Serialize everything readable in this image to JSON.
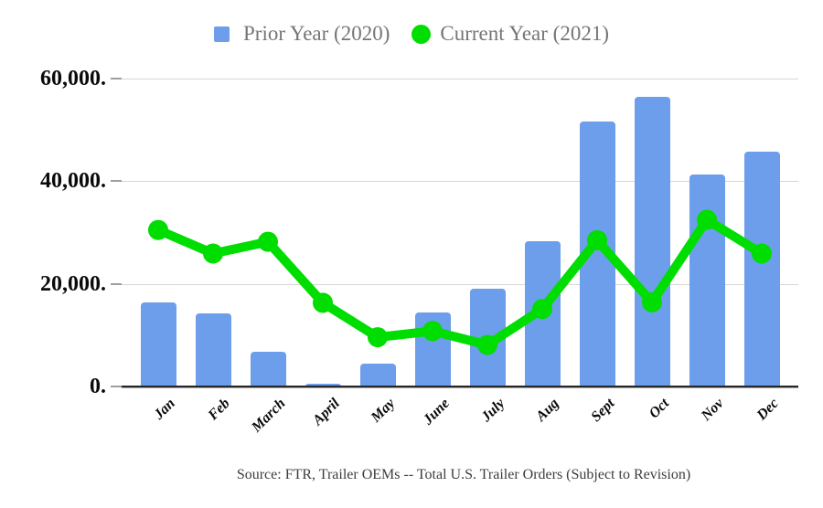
{
  "legend": {
    "items": [
      {
        "label": "Prior Year (2020)",
        "marker": "square",
        "color": "#6d9eeb"
      },
      {
        "label": "Current Year (2021)",
        "marker": "circle",
        "color": "#00dd00"
      }
    ]
  },
  "y_axis": {
    "tick_labels": [
      "60,000.",
      "40,000.",
      "20,000.",
      "0."
    ],
    "min": 0,
    "max": 60000,
    "interval": 20000
  },
  "x_axis": {
    "tick_labels": [
      "Jan",
      "Feb",
      "March",
      "April",
      "May",
      "June",
      "July",
      "Aug",
      "Sept",
      "Oct",
      "Nov",
      "Dec"
    ]
  },
  "footer": {
    "text": "Source: FTR, Trailer OEMs -- Total U.S. Trailer Orders (Subject to Revision)"
  },
  "chart_data": {
    "type": "combo",
    "title": "",
    "xlabel": "",
    "ylabel": "",
    "categories": [
      "Jan",
      "Feb",
      "March",
      "April",
      "May",
      "June",
      "July",
      "Aug",
      "Sept",
      "Oct",
      "Nov",
      "Dec"
    ],
    "series": [
      {
        "name": "Prior Year (2020)",
        "type": "bar",
        "color": "#6d9eeb",
        "values": [
          16300,
          14200,
          6700,
          600,
          4400,
          14400,
          19100,
          28400,
          51700,
          56400,
          41300,
          45800
        ]
      },
      {
        "name": "Current Year (2021)",
        "type": "line",
        "color": "#00dd00",
        "values": [
          30500,
          25900,
          28200,
          16300,
          9600,
          10800,
          8100,
          15100,
          28500,
          16400,
          32500,
          25900
        ]
      }
    ],
    "ylim": [
      0,
      60000
    ],
    "grid": "horizontal-only",
    "legend_position": "top"
  },
  "colors": {
    "bar": "#6d9eeb",
    "line": "#00dd00",
    "gridline": "#d6d6d6",
    "axis_line": "#262626",
    "legend_text": "#757575",
    "axis_label": "#0a0a0a",
    "footer_text": "#3d3d3d",
    "background": "#ffffff"
  }
}
